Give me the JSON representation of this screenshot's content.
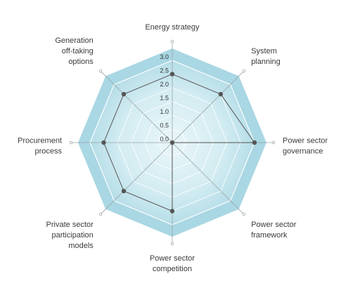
{
  "chart_data": {
    "type": "radar",
    "categories": [
      "Energy strategy",
      "System planning",
      "Power sector governance",
      "Power sector framework",
      "Power sector competition",
      "Private sector participation models",
      "Procurement process",
      "Generation off-taking options"
    ],
    "axis_label_lines": [
      [
        "Energy strategy"
      ],
      [
        "System",
        "planning"
      ],
      [
        "Power sector",
        "governance"
      ],
      [
        "Power sector",
        "framework"
      ],
      [
        "Power sector",
        "competition"
      ],
      [
        "Private sector",
        "participation",
        "models"
      ],
      [
        "Procurement",
        "process"
      ],
      [
        "Generation",
        "off-taking",
        "options"
      ]
    ],
    "series": [
      {
        "values": [
          2.5,
          2.5,
          3.0,
          0.0,
          2.5,
          2.5,
          2.5,
          2.5
        ]
      }
    ],
    "rlim": [
      0,
      3.0
    ],
    "ticks": [
      "0.0",
      "0.5",
      "1.0",
      "1.5",
      "2.0",
      "2.5",
      "3.0"
    ],
    "grid": true,
    "legend": "none"
  },
  "colors": {
    "outer_fill": "#a9d7e3",
    "inner_fill": "#eaf6f9",
    "grid_line": "#ffffff",
    "axis_line": "#9aa4a8",
    "series_line": "#555555",
    "series_point": "#555555",
    "label_text": "#3a3a3a"
  }
}
